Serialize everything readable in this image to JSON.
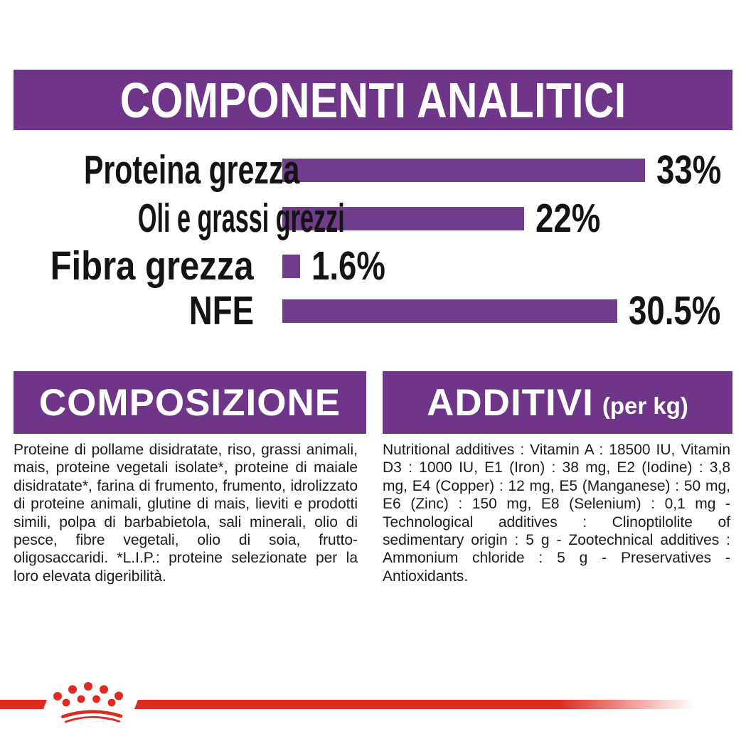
{
  "colors": {
    "banner_purple": "#6F3588",
    "bar_purple": "#713C8C",
    "brand_red": "#DE2B22",
    "text_black": "#141414"
  },
  "header": {
    "title": "COMPONENTI ANALITICI"
  },
  "chart_data": {
    "type": "bar",
    "orientation": "horizontal",
    "title": "COMPONENTI ANALITICI",
    "categories": [
      "Proteina grezza",
      "Oli e grassi grezzi",
      "Fibra grezza",
      "NFE"
    ],
    "values": [
      33,
      22,
      1.6,
      30.5
    ],
    "value_labels": [
      "33%",
      "22%",
      "1.6%",
      "30.5%"
    ],
    "unit": "%",
    "xlim": [
      0,
      33
    ],
    "bar_color": "#713C8C",
    "grid": false,
    "legend": false
  },
  "composition": {
    "title": "COMPOSIZIONE",
    "body": "Proteine di pollame disidratate, riso, grassi animali, mais, proteine vegetali isolate*, proteine di maiale disidratate*, farina di frumento, frumento, idrolizzato di proteine animali, glutine di mais, lieviti e prodotti simili, polpa di barbabietola, sali minerali, olio di pesce, fibre vegetali, olio di soia, frutto-oligosaccaridi. *L.I.P.: proteine selezionate per la loro elevata digeribilità."
  },
  "additives": {
    "title": "ADDITIVI",
    "title_suffix": "(per kg)",
    "body": "Nutritional additives : Vitamin A : 18500 IU, Vitamin D3 : 1000 IU, E1 (Iron) : 38 mg, E2 (Iodine) : 3,8 mg, E4 (Copper) : 12 mg, E5 (Manganese) : 50 mg, E6 (Zinc) : 150 mg, E8 (Selenium) : 0,1 mg - Technological additives : Clinoptilolite of sedimentary origin : 5 g - Zootechnical additives : Ammonium chloride : 5 g - Preservatives - Antioxidants."
  },
  "footer": {
    "logo": "royal-canin-crown"
  }
}
